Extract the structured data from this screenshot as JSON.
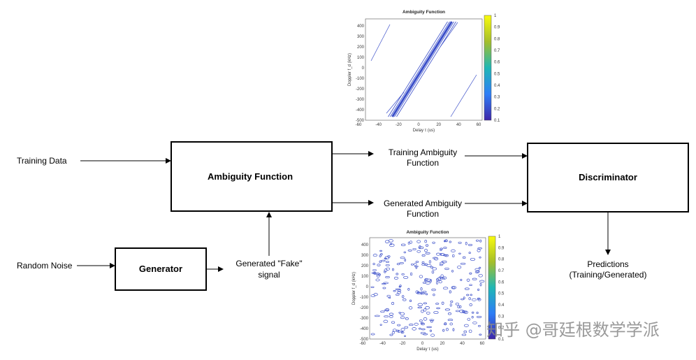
{
  "nodes": [
    {
      "label": "Ambiguity Function"
    },
    {
      "label": "Discriminator"
    },
    {
      "label": "Generator"
    }
  ],
  "labels": {
    "training_data": "Training Data",
    "random_noise": "Random Noise",
    "fake_signal": [
      "Generated \"Fake\"",
      "signal"
    ],
    "training_af": [
      "Training Ambiguity",
      "Function"
    ],
    "generated_af": [
      "Generated Ambiguity",
      "Function"
    ],
    "predictions": [
      "Predictions",
      "(Training/Generated)"
    ]
  },
  "plots": [
    {
      "title": "Ambiguity Function",
      "xlabel": "Delay τ (us)",
      "ylabel": "Doppler f_d (kHz)",
      "xticks": [
        -60,
        -40,
        -20,
        0,
        20,
        40,
        60
      ],
      "yticks": [
        400,
        300,
        200,
        100,
        0,
        -100,
        -200,
        -300,
        -400,
        -500
      ],
      "cticks": [
        1,
        0.9,
        0.8,
        0.7,
        0.6,
        0.5,
        0.4,
        0.3,
        0.2,
        0.1
      ]
    },
    {
      "title": "Ambiguity Function",
      "xlabel": "Delay τ (us)",
      "ylabel": "Doppler f_d (kHz)",
      "xticks": [
        -60,
        -40,
        -20,
        0,
        20,
        40,
        60
      ],
      "yticks": [
        400,
        300,
        200,
        100,
        0,
        -100,
        -200,
        -300,
        -400,
        -500
      ],
      "cticks": [
        1,
        0.9,
        0.8,
        0.7,
        0.6,
        0.5,
        0.4,
        0.3,
        0.2,
        0.1
      ]
    }
  ],
  "watermark": "知乎 @哥廷根数学学派"
}
